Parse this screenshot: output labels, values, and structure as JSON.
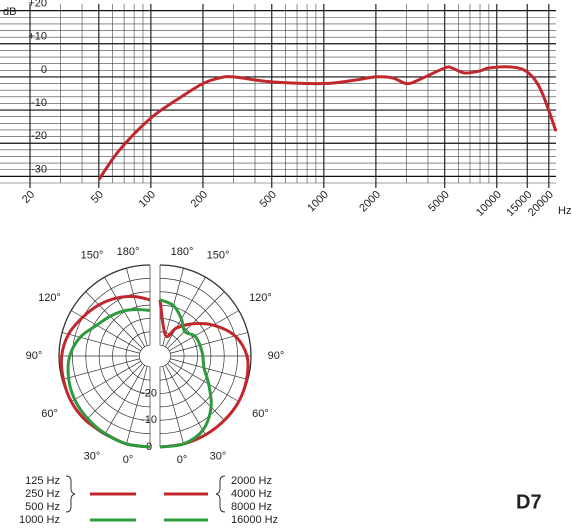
{
  "model": "D7",
  "chart_data": [
    {
      "type": "line",
      "y_label": "dB",
      "x_label": "Hz",
      "log_x": true,
      "grid": true,
      "xlim": [
        20,
        22000
      ],
      "ylim": [
        -32,
        22
      ],
      "xticks": [
        20,
        50,
        100,
        200,
        500,
        1000,
        2000,
        5000,
        10000,
        15000,
        20000
      ],
      "yticks": [
        {
          "value": 20,
          "label": "+20"
        },
        {
          "value": 10,
          "label": "+10"
        },
        0,
        -10,
        -20,
        -30
      ],
      "series": [
        {
          "color": "#c0282d",
          "x": [
            50,
            66,
            100,
            150,
            200,
            250,
            300,
            500,
            1000,
            1500,
            2000,
            2500,
            3000,
            3500,
            5000,
            5500,
            6500,
            8000,
            9000,
            12000,
            15000,
            18000,
            22000
          ],
          "values": [
            -31,
            -22,
            -12.4,
            -6,
            -2,
            -0.3,
            0,
            -1.5,
            -2,
            -1,
            0,
            -0.3,
            -2,
            -1,
            2.7,
            2.7,
            1.2,
            1.8,
            2.7,
            3,
            1.5,
            -4,
            -16.4
          ]
        }
      ]
    },
    {
      "type": "polar",
      "rlim": [
        -34,
        0
      ],
      "rticks": [
        -20,
        -10,
        0
      ],
      "angle_ticks": [
        {
          "value": 0,
          "label": "0°"
        },
        {
          "value": 30,
          "label": "30°"
        },
        {
          "value": 60,
          "label": "60°"
        },
        {
          "value": 90,
          "label": "90°"
        },
        {
          "value": 120,
          "label": "120°"
        },
        {
          "value": 150,
          "label": "150°"
        },
        {
          "value": 180,
          "label": "180°"
        }
      ],
      "angles": [
        0,
        15,
        30,
        45,
        60,
        75,
        90,
        105,
        120,
        135,
        150,
        165,
        180
      ],
      "series": [
        {
          "name": [
            "125 Hz",
            "250 Hz",
            "500 Hz"
          ],
          "color": "#c0282d",
          "side": "left",
          "values": [
            0,
            0,
            -0.5,
            0,
            0,
            -0.5,
            -1,
            -2.5,
            -5,
            -7,
            -9,
            -11,
            -13
          ]
        },
        {
          "name": [
            "1000 Hz"
          ],
          "color": "#2e9a3e",
          "side": "left",
          "values": [
            0,
            0,
            -0.5,
            -1,
            -1.5,
            -2.5,
            -4,
            -7,
            -11,
            -13,
            -14.5,
            -16,
            -17
          ]
        },
        {
          "name": [
            "2000 Hz",
            "4000 Hz",
            "8000 Hz"
          ],
          "color": "#c0282d",
          "side": "right",
          "values": [
            0,
            0,
            0,
            0,
            0,
            -0.5,
            -1.5,
            -5,
            -11,
            -17,
            -22,
            -26,
            -13
          ]
        },
        {
          "name": [
            "16000 Hz"
          ],
          "color": "#2e9a3e",
          "side": "right",
          "values": [
            0,
            0,
            -2,
            -7,
            -13,
            -17,
            -18,
            -18.5,
            -19,
            -21,
            -18,
            -14.5,
            -13
          ]
        }
      ]
    }
  ]
}
